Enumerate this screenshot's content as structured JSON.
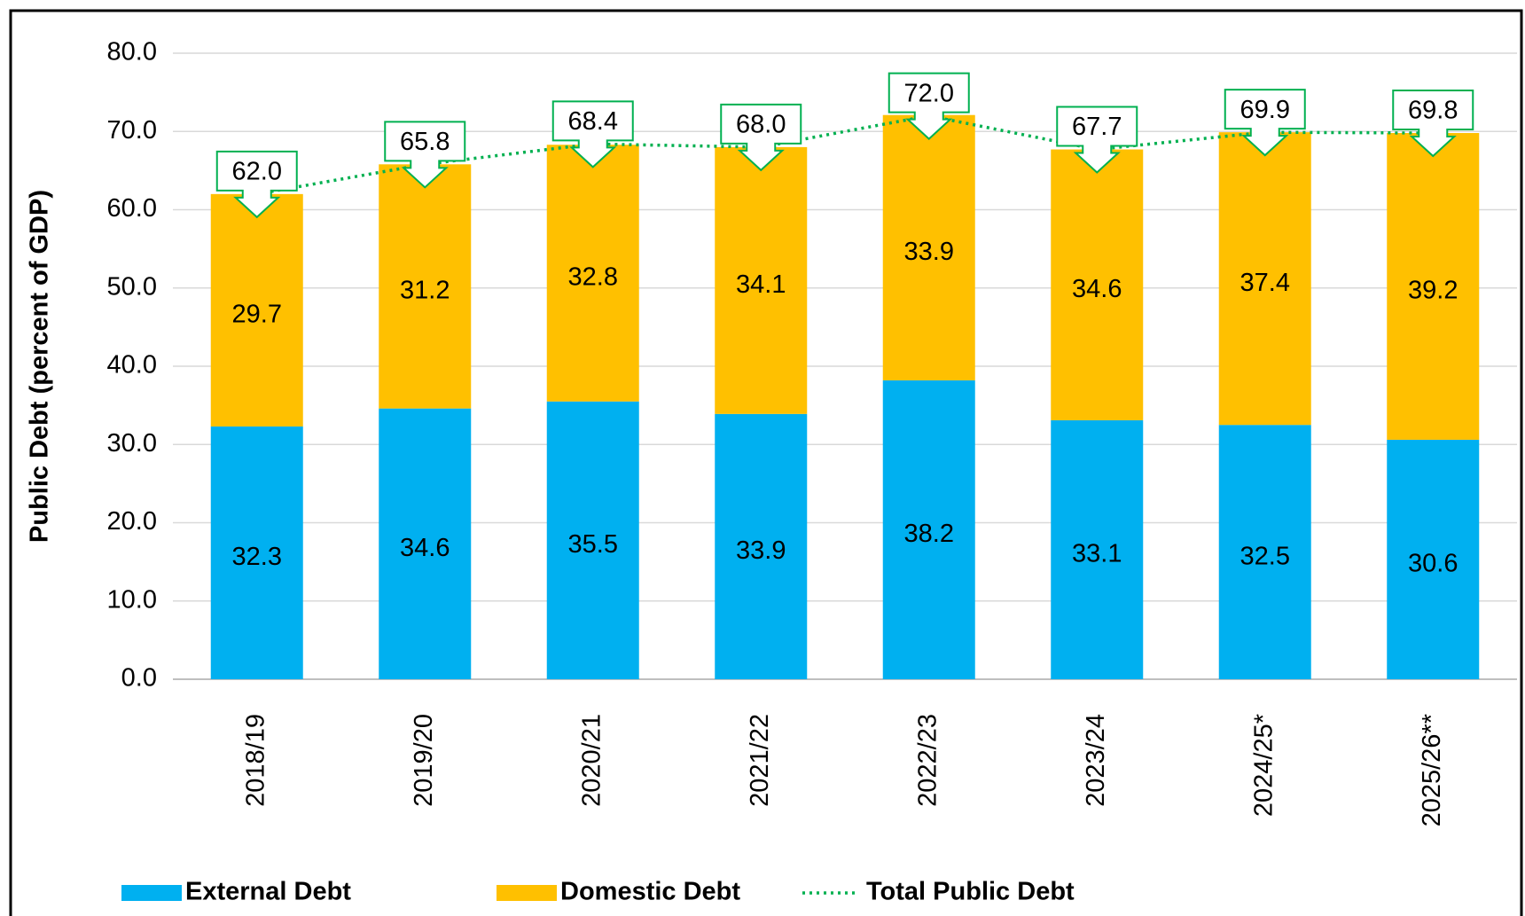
{
  "chart_data": {
    "type": "stacked_bar_line",
    "y_label": "Public Debt (percent of GDP)",
    "categories": [
      "2018/19",
      "2019/20",
      "2020/21",
      "2021/22",
      "2022/23",
      "2023/24",
      "2024/25*",
      "2025/26**"
    ],
    "series": [
      {
        "name": "External Debt",
        "color": "#00b0f0",
        "kind": "bar",
        "values": [
          32.3,
          34.6,
          35.5,
          33.9,
          38.2,
          33.1,
          32.5,
          30.6
        ]
      },
      {
        "name": "Domestic Debt",
        "color": "#ffc000",
        "kind": "bar",
        "values": [
          29.7,
          31.2,
          32.8,
          34.1,
          33.9,
          34.6,
          37.4,
          39.2
        ]
      },
      {
        "name": "Total Public Debt",
        "color": "#00b050",
        "kind": "line",
        "values": [
          62.0,
          65.8,
          68.4,
          68.0,
          72.0,
          67.7,
          69.9,
          69.8
        ],
        "value_labels": [
          "62.0",
          "65.8",
          "68.4",
          "68.0",
          "72.0",
          "67.7",
          "69.9",
          "69.8"
        ]
      }
    ],
    "ylim": [
      0,
      80
    ],
    "yticks": [
      {
        "value": 0,
        "label": "0.0"
      },
      {
        "value": 10,
        "label": "10.0"
      },
      {
        "value": 20,
        "label": "20.0"
      },
      {
        "value": 30,
        "label": "30.0"
      },
      {
        "value": 40,
        "label": "40.0"
      },
      {
        "value": 50,
        "label": "50.0"
      },
      {
        "value": 60,
        "label": "60.0"
      },
      {
        "value": 70,
        "label": "70.0"
      },
      {
        "value": 80,
        "label": "80.0"
      }
    ],
    "grid": true,
    "legend": "bottom"
  }
}
